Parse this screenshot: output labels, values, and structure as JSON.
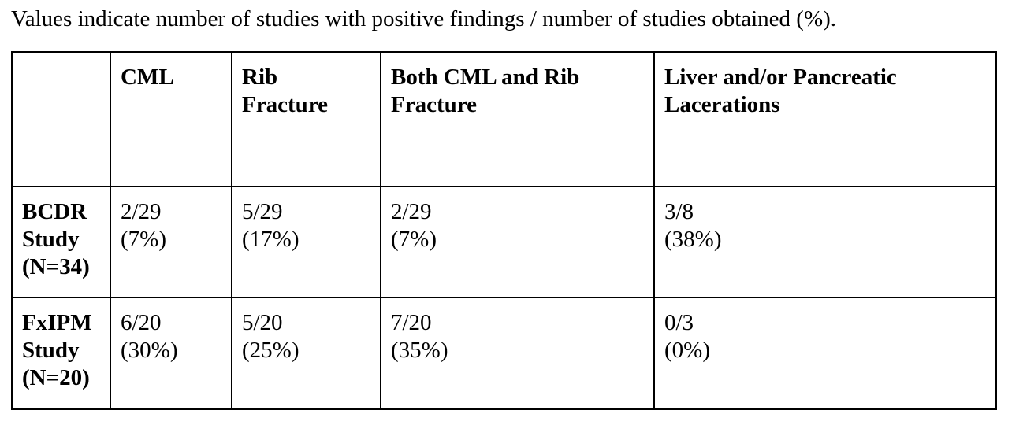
{
  "caption": "Values indicate number of studies with positive findings / number of studies obtained (%).",
  "table": {
    "columns": [
      {
        "lines": [
          ""
        ]
      },
      {
        "lines": [
          "CML"
        ]
      },
      {
        "lines": [
          "Rib",
          "Fracture"
        ]
      },
      {
        "lines": [
          "Both CML and Rib",
          "Fracture"
        ]
      },
      {
        "lines": [
          "Liver and/or Pancreatic",
          "Lacerations"
        ]
      }
    ],
    "rows": [
      {
        "header": [
          "BCDR",
          "Study",
          "(N=34)"
        ],
        "cells": [
          [
            "2/29",
            "(7%)"
          ],
          [
            "5/29",
            "(17%)"
          ],
          [
            "2/29",
            "(7%)"
          ],
          [
            "3/8",
            "(38%)"
          ]
        ]
      },
      {
        "header": [
          "FxIPM",
          "Study",
          "(N=20)"
        ],
        "cells": [
          [
            "6/20",
            "(30%)"
          ],
          [
            "5/20",
            "(25%)"
          ],
          [
            "7/20",
            "(35%)"
          ],
          [
            "0/3",
            "(0%)"
          ]
        ]
      }
    ]
  }
}
